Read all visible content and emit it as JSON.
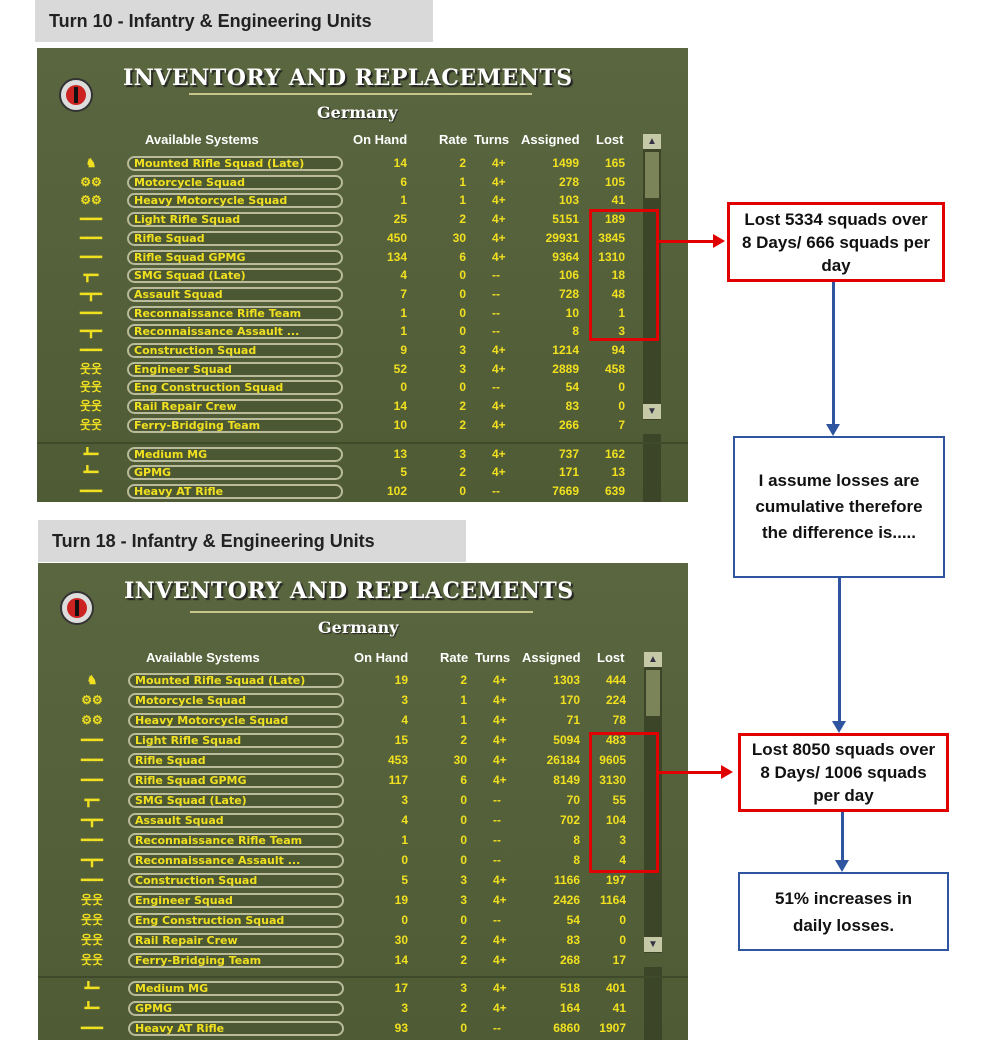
{
  "colors": {
    "accent_red": "#e00000",
    "accent_blue": "#2f55a0",
    "panel": "#55613a",
    "text_yellow": "#f0e020"
  },
  "panels": [
    {
      "caption": "Turn 10 - Infantry & Engineering Units",
      "title": "INVENTORY AND REPLACEMENTS",
      "country": "Germany",
      "headers": {
        "systems": "Available Systems",
        "on_hand": "On Hand",
        "rate": "Rate",
        "turns": "Turns",
        "assigned": "Assigned",
        "lost": "Lost"
      },
      "rows": [
        {
          "icon": "horse-icon",
          "name": "Mounted Rifle Squad (Late)",
          "on_hand": "14",
          "rate": "2",
          "turns": "4+",
          "assigned": "1499",
          "lost": "165"
        },
        {
          "icon": "motorcycle-icon",
          "name": "Motorcycle Squad",
          "on_hand": "6",
          "rate": "1",
          "turns": "4+",
          "assigned": "278",
          "lost": "105"
        },
        {
          "icon": "motorcycle-icon",
          "name": "Heavy Motorcycle Squad",
          "on_hand": "1",
          "rate": "1",
          "turns": "4+",
          "assigned": "103",
          "lost": "41"
        },
        {
          "icon": "rifle-icon",
          "name": "Light Rifle Squad",
          "on_hand": "25",
          "rate": "2",
          "turns": "4+",
          "assigned": "5151",
          "lost": "189"
        },
        {
          "icon": "rifle-icon",
          "name": "Rifle Squad",
          "on_hand": "450",
          "rate": "30",
          "turns": "4+",
          "assigned": "29931",
          "lost": "3845"
        },
        {
          "icon": "rifle-icon",
          "name": "Rifle Squad GPMG",
          "on_hand": "134",
          "rate": "6",
          "turns": "4+",
          "assigned": "9364",
          "lost": "1310"
        },
        {
          "icon": "smg-icon",
          "name": "SMG Squad (Late)",
          "on_hand": "4",
          "rate": "0",
          "turns": "--",
          "assigned": "106",
          "lost": "18"
        },
        {
          "icon": "assault-rifle-icon",
          "name": "Assault Squad",
          "on_hand": "7",
          "rate": "0",
          "turns": "--",
          "assigned": "728",
          "lost": "48"
        },
        {
          "icon": "rifle-icon",
          "name": "Reconnaissance Rifle Team",
          "on_hand": "1",
          "rate": "0",
          "turns": "--",
          "assigned": "10",
          "lost": "1"
        },
        {
          "icon": "assault-rifle-icon",
          "name": "Reconnaissance Assault ...",
          "on_hand": "1",
          "rate": "0",
          "turns": "--",
          "assigned": "8",
          "lost": "3"
        },
        {
          "icon": "rifle-icon",
          "name": "Construction Squad",
          "on_hand": "9",
          "rate": "3",
          "turns": "4+",
          "assigned": "1214",
          "lost": "94"
        },
        {
          "icon": "engineers-icon",
          "name": "Engineer Squad",
          "on_hand": "52",
          "rate": "3",
          "turns": "4+",
          "assigned": "2889",
          "lost": "458"
        },
        {
          "icon": "engineers-icon",
          "name": "Eng Construction Squad",
          "on_hand": "0",
          "rate": "0",
          "turns": "--",
          "assigned": "54",
          "lost": "0"
        },
        {
          "icon": "engineers-icon",
          "name": "Rail Repair Crew",
          "on_hand": "14",
          "rate": "2",
          "turns": "4+",
          "assigned": "83",
          "lost": "0"
        },
        {
          "icon": "engineers-icon",
          "name": "Ferry-Bridging Team",
          "on_hand": "10",
          "rate": "2",
          "turns": "4+",
          "assigned": "266",
          "lost": "7"
        }
      ],
      "rows2": [
        {
          "icon": "machine-gun-icon",
          "name": "Medium MG",
          "on_hand": "13",
          "rate": "3",
          "turns": "4+",
          "assigned": "737",
          "lost": "162"
        },
        {
          "icon": "machine-gun-icon",
          "name": "GPMG",
          "on_hand": "5",
          "rate": "2",
          "turns": "4+",
          "assigned": "171",
          "lost": "13"
        },
        {
          "icon": "rifle-icon",
          "name": "Heavy AT Rifle",
          "on_hand": "102",
          "rate": "0",
          "turns": "--",
          "assigned": "7669",
          "lost": "639"
        }
      ]
    },
    {
      "caption": "Turn 18 - Infantry & Engineering Units",
      "title": "INVENTORY AND REPLACEMENTS",
      "country": "Germany",
      "headers": {
        "systems": "Available Systems",
        "on_hand": "On Hand",
        "rate": "Rate",
        "turns": "Turns",
        "assigned": "Assigned",
        "lost": "Lost"
      },
      "rows": [
        {
          "icon": "horse-icon",
          "name": "Mounted Rifle Squad (Late)",
          "on_hand": "19",
          "rate": "2",
          "turns": "4+",
          "assigned": "1303",
          "lost": "444"
        },
        {
          "icon": "motorcycle-icon",
          "name": "Motorcycle Squad",
          "on_hand": "3",
          "rate": "1",
          "turns": "4+",
          "assigned": "170",
          "lost": "224"
        },
        {
          "icon": "motorcycle-icon",
          "name": "Heavy Motorcycle Squad",
          "on_hand": "4",
          "rate": "1",
          "turns": "4+",
          "assigned": "71",
          "lost": "78"
        },
        {
          "icon": "rifle-icon",
          "name": "Light Rifle Squad",
          "on_hand": "15",
          "rate": "2",
          "turns": "4+",
          "assigned": "5094",
          "lost": "483"
        },
        {
          "icon": "rifle-icon",
          "name": "Rifle Squad",
          "on_hand": "453",
          "rate": "30",
          "turns": "4+",
          "assigned": "26184",
          "lost": "9605"
        },
        {
          "icon": "rifle-icon",
          "name": "Rifle Squad GPMG",
          "on_hand": "117",
          "rate": "6",
          "turns": "4+",
          "assigned": "8149",
          "lost": "3130"
        },
        {
          "icon": "smg-icon",
          "name": "SMG Squad (Late)",
          "on_hand": "3",
          "rate": "0",
          "turns": "--",
          "assigned": "70",
          "lost": "55"
        },
        {
          "icon": "assault-rifle-icon",
          "name": "Assault Squad",
          "on_hand": "4",
          "rate": "0",
          "turns": "--",
          "assigned": "702",
          "lost": "104"
        },
        {
          "icon": "rifle-icon",
          "name": "Reconnaissance Rifle Team",
          "on_hand": "1",
          "rate": "0",
          "turns": "--",
          "assigned": "8",
          "lost": "3"
        },
        {
          "icon": "assault-rifle-icon",
          "name": "Reconnaissance Assault ...",
          "on_hand": "0",
          "rate": "0",
          "turns": "--",
          "assigned": "8",
          "lost": "4"
        },
        {
          "icon": "rifle-icon",
          "name": "Construction Squad",
          "on_hand": "5",
          "rate": "3",
          "turns": "4+",
          "assigned": "1166",
          "lost": "197"
        },
        {
          "icon": "engineers-icon",
          "name": "Engineer Squad",
          "on_hand": "19",
          "rate": "3",
          "turns": "4+",
          "assigned": "2426",
          "lost": "1164"
        },
        {
          "icon": "engineers-icon",
          "name": "Eng Construction Squad",
          "on_hand": "0",
          "rate": "0",
          "turns": "--",
          "assigned": "54",
          "lost": "0"
        },
        {
          "icon": "engineers-icon",
          "name": "Rail Repair Crew",
          "on_hand": "30",
          "rate": "2",
          "turns": "4+",
          "assigned": "83",
          "lost": "0"
        },
        {
          "icon": "engineers-icon",
          "name": "Ferry-Bridging Team",
          "on_hand": "14",
          "rate": "2",
          "turns": "4+",
          "assigned": "268",
          "lost": "17"
        }
      ],
      "rows2": [
        {
          "icon": "machine-gun-icon",
          "name": "Medium MG",
          "on_hand": "17",
          "rate": "3",
          "turns": "4+",
          "assigned": "518",
          "lost": "401"
        },
        {
          "icon": "machine-gun-icon",
          "name": "GPMG",
          "on_hand": "3",
          "rate": "2",
          "turns": "4+",
          "assigned": "164",
          "lost": "41"
        },
        {
          "icon": "rifle-icon",
          "name": "Heavy AT Rifle",
          "on_hand": "93",
          "rate": "0",
          "turns": "--",
          "assigned": "6860",
          "lost": "1907"
        }
      ]
    }
  ],
  "notes": {
    "turn10": "Lost 5334 squads over 8 Days/ 666 squads per day",
    "assumption": "I assume losses are cumulative therefore the difference is.....",
    "turn18": "Lost 8050 squads over 8 Days/ 1006 squads per day",
    "conclusion": "51% increases in daily losses."
  }
}
